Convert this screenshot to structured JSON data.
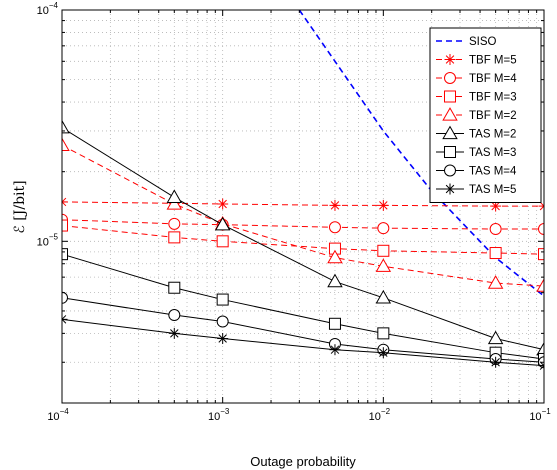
{
  "chart_data": {
    "type": "line",
    "xlabel": "Outage probability",
    "ylabel": "ℰ [J/bit]",
    "xscale": "log",
    "yscale": "log",
    "xlim": [
      0.0001,
      0.1
    ],
    "ylim": [
      2e-06,
      0.0001
    ],
    "grid": true,
    "legend_position": "top-right",
    "x_ticks": [
      {
        "value": 0.0001,
        "base": "10",
        "exp": "−4"
      },
      {
        "value": 0.001,
        "base": "10",
        "exp": "−3"
      },
      {
        "value": 0.01,
        "base": "10",
        "exp": "−2"
      },
      {
        "value": 0.1,
        "base": "10",
        "exp": "−1"
      }
    ],
    "y_ticks": [
      {
        "value": 1e-05,
        "base": "10",
        "exp": "−5"
      },
      {
        "value": 0.0001,
        "base": "10",
        "exp": "−4"
      }
    ],
    "series": [
      {
        "name": "SISO",
        "color": "#0000ff",
        "dash": "6,4",
        "marker": "none",
        "x": [
          0.003,
          0.005,
          0.01,
          0.02,
          0.05,
          0.1
        ],
        "y": [
          0.0001,
          6e-05,
          3e-05,
          1.65e-05,
          8.5e-06,
          5.8e-06
        ]
      },
      {
        "name": "TBF M=5",
        "color": "#ff0000",
        "dash": "6,4",
        "marker": "asterisk",
        "x": [
          0.0001,
          0.0005,
          0.001,
          0.005,
          0.01,
          0.05,
          0.1
        ],
        "y": [
          1.48e-05,
          1.46e-05,
          1.45e-05,
          1.43e-05,
          1.43e-05,
          1.42e-05,
          1.42e-05
        ]
      },
      {
        "name": "TBF M=4",
        "color": "#ff0000",
        "dash": "6,4",
        "marker": "circle",
        "x": [
          0.0001,
          0.0005,
          0.001,
          0.005,
          0.01,
          0.05,
          0.1
        ],
        "y": [
          1.24e-05,
          1.19e-05,
          1.18e-05,
          1.15e-05,
          1.14e-05,
          1.13e-05,
          1.13e-05
        ]
      },
      {
        "name": "TBF M=3",
        "color": "#ff0000",
        "dash": "6,4",
        "marker": "square",
        "x": [
          0.0001,
          0.0005,
          0.001,
          0.005,
          0.01,
          0.05,
          0.1
        ],
        "y": [
          1.17e-05,
          1.04e-05,
          1e-05,
          9.3e-06,
          9.1e-06,
          8.9e-06,
          8.8e-06
        ]
      },
      {
        "name": "TBF M=2",
        "color": "#ff0000",
        "dash": "6,4",
        "marker": "triangle",
        "x": [
          0.0001,
          0.0005,
          0.001,
          0.005,
          0.01,
          0.05,
          0.1
        ],
        "y": [
          2.6e-05,
          1.45e-05,
          1.19e-05,
          8.5e-06,
          7.8e-06,
          6.6e-06,
          6.4e-06
        ]
      },
      {
        "name": "TAS M=2",
        "color": "#000000",
        "dash": "",
        "marker": "triangle",
        "x": [
          0.0001,
          0.0005,
          0.001,
          0.005,
          0.01,
          0.05,
          0.1
        ],
        "y": [
          3.1e-05,
          1.55e-05,
          1.18e-05,
          6.7e-06,
          5.7e-06,
          3.8e-06,
          3.4e-06
        ]
      },
      {
        "name": "TAS M=3",
        "color": "#000000",
        "dash": "",
        "marker": "square",
        "x": [
          0.0001,
          0.0005,
          0.001,
          0.005,
          0.01,
          0.05,
          0.1
        ],
        "y": [
          8.8e-06,
          6.3e-06,
          5.6e-06,
          4.4e-06,
          4e-06,
          3.3e-06,
          3.1e-06
        ]
      },
      {
        "name": "TAS M=4",
        "color": "#000000",
        "dash": "",
        "marker": "circle",
        "x": [
          0.0001,
          0.0005,
          0.001,
          0.005,
          0.01,
          0.05,
          0.1
        ],
        "y": [
          5.7e-06,
          4.8e-06,
          4.5e-06,
          3.6e-06,
          3.4e-06,
          3.1e-06,
          3e-06
        ]
      },
      {
        "name": "TAS M=5",
        "color": "#000000",
        "dash": "",
        "marker": "asterisk",
        "x": [
          0.0001,
          0.0005,
          0.001,
          0.005,
          0.01,
          0.05,
          0.1
        ],
        "y": [
          4.6e-06,
          4e-06,
          3.8e-06,
          3.4e-06,
          3.3e-06,
          3e-06,
          2.9e-06
        ]
      }
    ]
  }
}
